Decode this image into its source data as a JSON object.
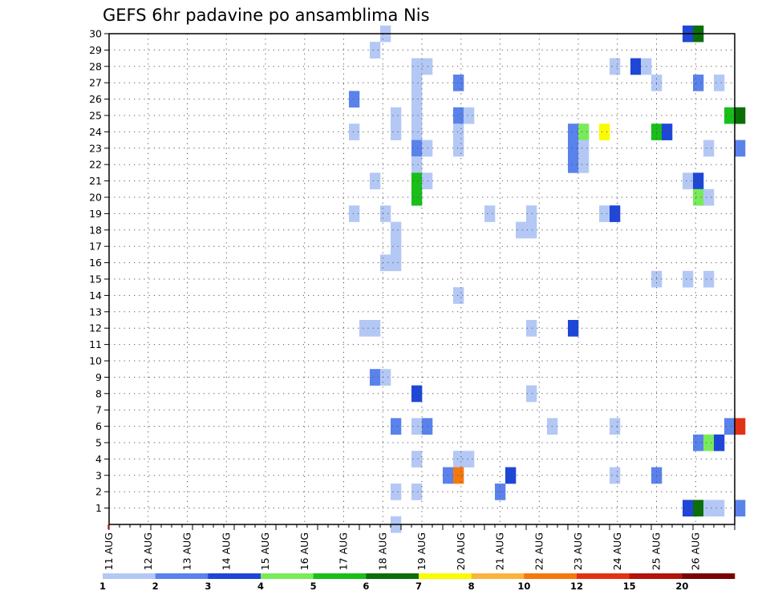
{
  "chart_data": {
    "type": "heatmap",
    "title": "GEFS 6hr padavine po ansamblima Nis",
    "x_tick_labels": [
      "11 AUG",
      "12 AUG",
      "13 AUG",
      "14 AUG",
      "15 AUG",
      "16 AUG",
      "17 AUG",
      "18 AUG",
      "19 AUG",
      "20 AUG",
      "21 AUG",
      "22 AUG",
      "23 AUG",
      "24 AUG",
      "25 AUG",
      "26 AUG"
    ],
    "y_tick_labels": [
      "1",
      "2",
      "3",
      "4",
      "5",
      "6",
      "7",
      "8",
      "9",
      "10",
      "11",
      "12",
      "13",
      "14",
      "15",
      "16",
      "17",
      "18",
      "19",
      "20",
      "21",
      "22",
      "23",
      "24",
      "25",
      "26",
      "27",
      "28",
      "29",
      "30"
    ],
    "x_range_hours": [
      0,
      360
    ],
    "time_step_hours": 6,
    "y_range": [
      0,
      30
    ],
    "grid": "dotted",
    "legend": {
      "placement": "bottom",
      "labels": [
        "1",
        "2",
        "3",
        "4",
        "5",
        "6",
        "7",
        "8",
        "10",
        "12",
        "15",
        "20"
      ],
      "colors": [
        "#b4c8f5",
        "#5a82ec",
        "#1e46d7",
        "#78eb5a",
        "#19be19",
        "#0a6e0a",
        "#fafa00",
        "#fab43c",
        "#f5780f",
        "#e13214",
        "#b4140a",
        "#780505"
      ]
    },
    "cells": [
      {
        "member": 30,
        "t": 26,
        "level": 0
      },
      {
        "member": 30,
        "t": 55,
        "level": 2
      },
      {
        "member": 30,
        "t": 56,
        "level": 5
      },
      {
        "member": 29,
        "t": 25,
        "level": 0
      },
      {
        "member": 28,
        "t": 29,
        "level": 0
      },
      {
        "member": 28,
        "t": 30,
        "level": 0
      },
      {
        "member": 28,
        "t": 48,
        "level": 0
      },
      {
        "member": 28,
        "t": 50,
        "level": 2
      },
      {
        "member": 28,
        "t": 51,
        "level": 0
      },
      {
        "member": 27,
        "t": 29,
        "level": 0
      },
      {
        "member": 27,
        "t": 33,
        "level": 1
      },
      {
        "member": 27,
        "t": 52,
        "level": 0
      },
      {
        "member": 27,
        "t": 56,
        "level": 1
      },
      {
        "member": 27,
        "t": 58,
        "level": 0
      },
      {
        "member": 26,
        "t": 23,
        "level": 1
      },
      {
        "member": 26,
        "t": 29,
        "level": 0
      },
      {
        "member": 25,
        "t": 27,
        "level": 0
      },
      {
        "member": 25,
        "t": 29,
        "level": 0
      },
      {
        "member": 25,
        "t": 33,
        "level": 1
      },
      {
        "member": 25,
        "t": 34,
        "level": 0
      },
      {
        "member": 25,
        "t": 59,
        "level": 4
      },
      {
        "member": 25,
        "t": 60,
        "level": 5
      },
      {
        "member": 24,
        "t": 23,
        "level": 0
      },
      {
        "member": 24,
        "t": 27,
        "level": 0
      },
      {
        "member": 24,
        "t": 29,
        "level": 0
      },
      {
        "member": 24,
        "t": 33,
        "level": 0
      },
      {
        "member": 24,
        "t": 44,
        "level": 1
      },
      {
        "member": 24,
        "t": 45,
        "level": 3
      },
      {
        "member": 24,
        "t": 47,
        "level": 6
      },
      {
        "member": 24,
        "t": 52,
        "level": 4
      },
      {
        "member": 24,
        "t": 53,
        "level": 2
      },
      {
        "member": 23,
        "t": 29,
        "level": 1
      },
      {
        "member": 23,
        "t": 30,
        "level": 0
      },
      {
        "member": 23,
        "t": 33,
        "level": 0
      },
      {
        "member": 23,
        "t": 44,
        "level": 1
      },
      {
        "member": 23,
        "t": 45,
        "level": 0
      },
      {
        "member": 23,
        "t": 57,
        "level": 0
      },
      {
        "member": 23,
        "t": 60,
        "level": 1
      },
      {
        "member": 22,
        "t": 29,
        "level": 0
      },
      {
        "member": 22,
        "t": 44,
        "level": 1
      },
      {
        "member": 22,
        "t": 45,
        "level": 0
      },
      {
        "member": 21,
        "t": 25,
        "level": 0
      },
      {
        "member": 21,
        "t": 29,
        "level": 4
      },
      {
        "member": 21,
        "t": 30,
        "level": 0
      },
      {
        "member": 21,
        "t": 55,
        "level": 0
      },
      {
        "member": 21,
        "t": 56,
        "level": 2
      },
      {
        "member": 20,
        "t": 29,
        "level": 4
      },
      {
        "member": 20,
        "t": 56,
        "level": 3
      },
      {
        "member": 20,
        "t": 57,
        "level": 0
      },
      {
        "member": 19,
        "t": 23,
        "level": 0
      },
      {
        "member": 19,
        "t": 26,
        "level": 0
      },
      {
        "member": 19,
        "t": 36,
        "level": 0
      },
      {
        "member": 19,
        "t": 40,
        "level": 0
      },
      {
        "member": 19,
        "t": 47,
        "level": 0
      },
      {
        "member": 19,
        "t": 48,
        "level": 2
      },
      {
        "member": 18,
        "t": 27,
        "level": 0
      },
      {
        "member": 18,
        "t": 39,
        "level": 0
      },
      {
        "member": 18,
        "t": 40,
        "level": 0
      },
      {
        "member": 17,
        "t": 27,
        "level": 0
      },
      {
        "member": 16,
        "t": 26,
        "level": 0
      },
      {
        "member": 16,
        "t": 27,
        "level": 0
      },
      {
        "member": 15,
        "t": 52,
        "level": 0
      },
      {
        "member": 15,
        "t": 55,
        "level": 0
      },
      {
        "member": 15,
        "t": 57,
        "level": 0
      },
      {
        "member": 14,
        "t": 33,
        "level": 0
      },
      {
        "member": 12,
        "t": 24,
        "level": 0
      },
      {
        "member": 12,
        "t": 25,
        "level": 0
      },
      {
        "member": 12,
        "t": 40,
        "level": 0
      },
      {
        "member": 12,
        "t": 44,
        "level": 2
      },
      {
        "member": 9,
        "t": 25,
        "level": 1
      },
      {
        "member": 9,
        "t": 26,
        "level": 0
      },
      {
        "member": 8,
        "t": 29,
        "level": 2
      },
      {
        "member": 8,
        "t": 40,
        "level": 0
      },
      {
        "member": 6,
        "t": 27,
        "level": 1
      },
      {
        "member": 6,
        "t": 29,
        "level": 0
      },
      {
        "member": 6,
        "t": 30,
        "level": 1
      },
      {
        "member": 6,
        "t": 42,
        "level": 0
      },
      {
        "member": 6,
        "t": 48,
        "level": 0
      },
      {
        "member": 6,
        "t": 59,
        "level": 1
      },
      {
        "member": 6,
        "t": 60,
        "level": 9
      },
      {
        "member": 5,
        "t": 56,
        "level": 1
      },
      {
        "member": 5,
        "t": 57,
        "level": 3
      },
      {
        "member": 5,
        "t": 58,
        "level": 2
      },
      {
        "member": 4,
        "t": 29,
        "level": 0
      },
      {
        "member": 4,
        "t": 33,
        "level": 0
      },
      {
        "member": 4,
        "t": 34,
        "level": 0
      },
      {
        "member": 3,
        "t": 32,
        "level": 1
      },
      {
        "member": 3,
        "t": 33,
        "level": 8
      },
      {
        "member": 3,
        "t": 38,
        "level": 2
      },
      {
        "member": 3,
        "t": 48,
        "level": 0
      },
      {
        "member": 3,
        "t": 52,
        "level": 1
      },
      {
        "member": 2,
        "t": 27,
        "level": 0
      },
      {
        "member": 2,
        "t": 29,
        "level": 0
      },
      {
        "member": 2,
        "t": 37,
        "level": 1
      },
      {
        "member": 1,
        "t": 55,
        "level": 2
      },
      {
        "member": 1,
        "t": 56,
        "level": 5
      },
      {
        "member": 1,
        "t": 57,
        "level": 0
      },
      {
        "member": 1,
        "t": 58,
        "level": 0
      },
      {
        "member": 1,
        "t": 60,
        "level": 1
      },
      {
        "member": 0,
        "t": 27,
        "level": 0
      }
    ]
  }
}
